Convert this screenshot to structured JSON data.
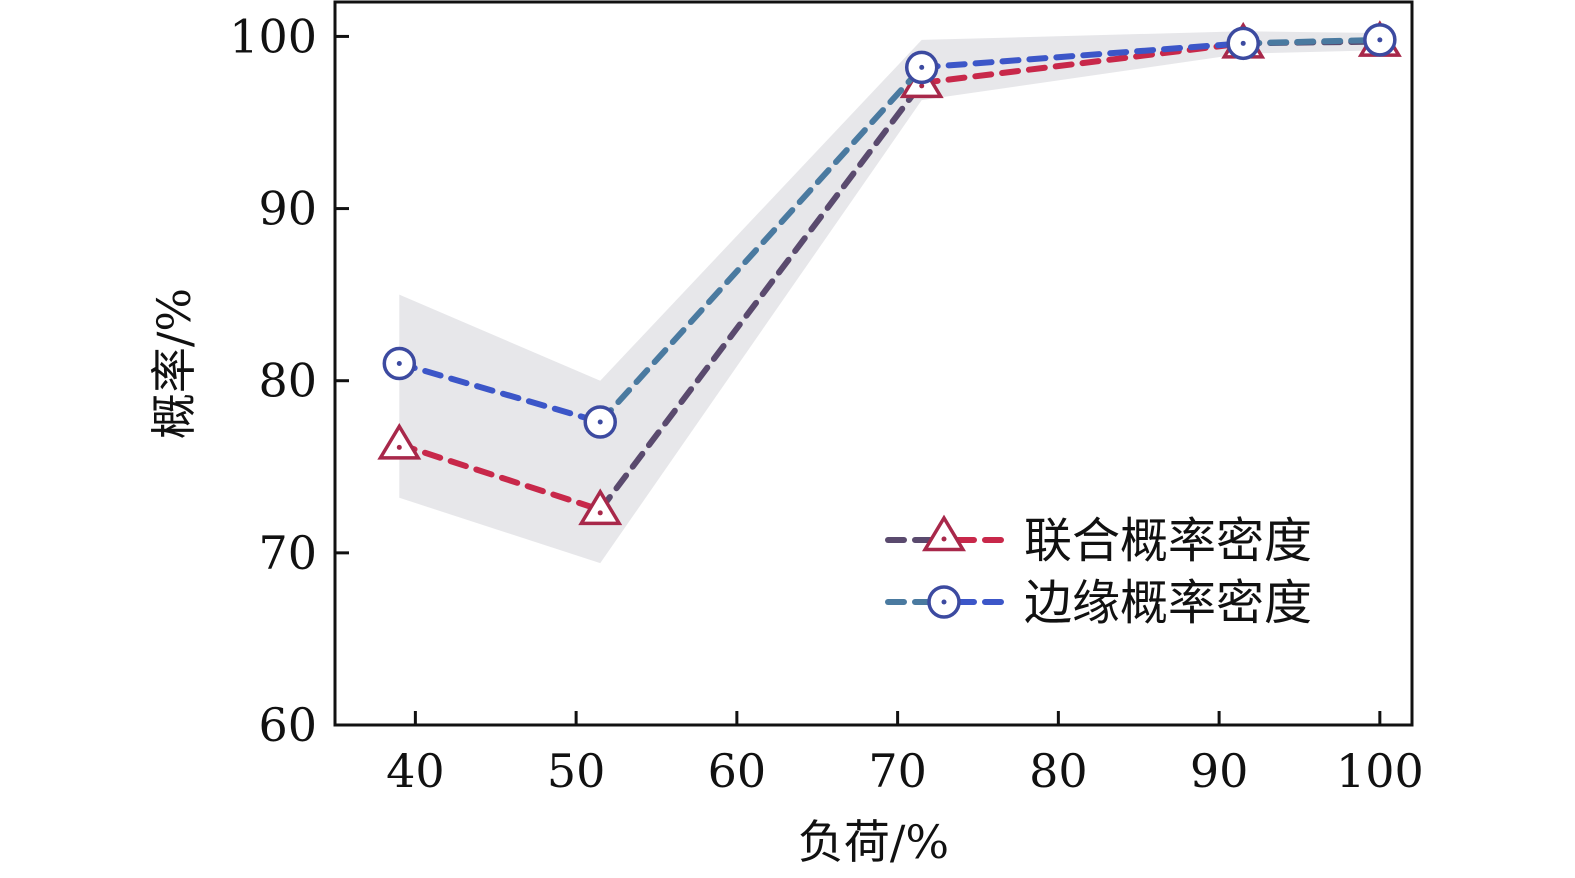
{
  "chart_data": {
    "type": "line",
    "xlabel": "负荷/%",
    "ylabel": "概率/%",
    "xlim": [
      35,
      102
    ],
    "ylim": [
      60,
      102
    ],
    "x_ticks": [
      40,
      50,
      60,
      70,
      80,
      90,
      100
    ],
    "y_ticks": [
      60,
      70,
      80,
      90,
      100
    ],
    "grid": false,
    "legend_position": "bottom-right",
    "band": {
      "upper": [
        [
          39,
          85
        ],
        [
          51.5,
          80
        ],
        [
          71.5,
          99.8
        ],
        [
          91.5,
          100.3
        ],
        [
          100,
          100.2
        ]
      ],
      "lower": [
        [
          39,
          73.2
        ],
        [
          51.5,
          69.4
        ],
        [
          71.5,
          96.3
        ],
        [
          91.5,
          99.0
        ],
        [
          100,
          99.2
        ]
      ],
      "color": "#e3e3e6"
    },
    "series": [
      {
        "name": "联合概率密度",
        "marker": "triangle",
        "x": [
          39,
          51.5,
          71.5,
          91.5,
          100
        ],
        "y": [
          76.3,
          72.5,
          97.3,
          99.6,
          99.7
        ],
        "colors": [
          "#c8284a",
          "#5a4a6e"
        ]
      },
      {
        "name": "边缘概率密度",
        "marker": "circle",
        "x": [
          39,
          51.5,
          71.5,
          91.5,
          100
        ],
        "y": [
          81.0,
          77.6,
          98.2,
          99.6,
          99.8
        ],
        "colors": [
          "#3c56c8",
          "#4a7aa0"
        ]
      }
    ]
  }
}
